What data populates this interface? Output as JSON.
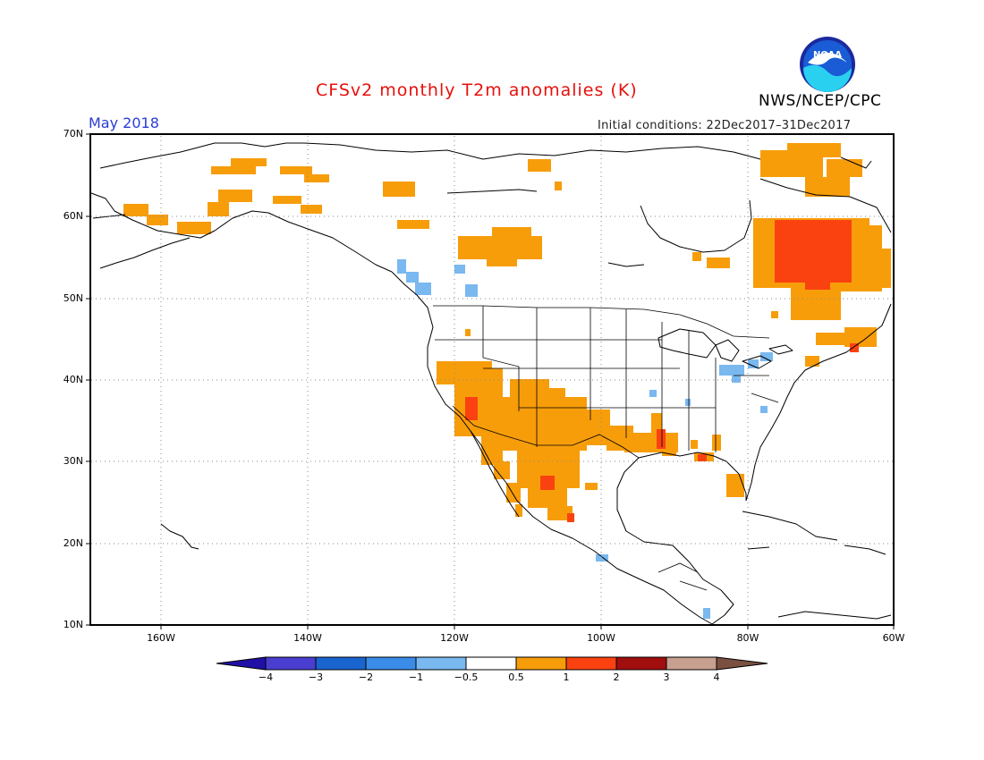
{
  "header": {
    "title": "CFSv2 monthly T2m anomalies (K)",
    "agency": "NWS/NCEP/CPC",
    "logo_text": "NOAA",
    "period": "May 2018",
    "initial_conditions": "Initial conditions: 22Dec2017–31Dec2017"
  },
  "colors": {
    "title": "#e8100c",
    "period": "#2a3bd6",
    "anom_light_blue": "#7ab8f0",
    "anom_orange": "#f79d0a",
    "anom_red_orange": "#fa4210",
    "coast": "#000000",
    "grid": "#8a8a8a"
  },
  "map": {
    "lat_labels": [
      "70N",
      "60N",
      "50N",
      "40N",
      "30N",
      "20N",
      "10N"
    ],
    "lon_labels": [
      "160W",
      "140W",
      "120W",
      "100W",
      "80W",
      "60W"
    ]
  },
  "colorbar": {
    "labels": [
      "−4",
      "−3",
      "−2",
      "−1",
      "−0.5",
      "0.5",
      "1",
      "2",
      "3",
      "4"
    ],
    "colors": [
      "#2010a8",
      "#4a3ed0",
      "#1a64d0",
      "#3a8ce8",
      "#7ab8f0",
      "#ffffff",
      "#f79d0a",
      "#fa4210",
      "#a00e0e",
      "#c8a090",
      "#7a5040"
    ]
  }
}
